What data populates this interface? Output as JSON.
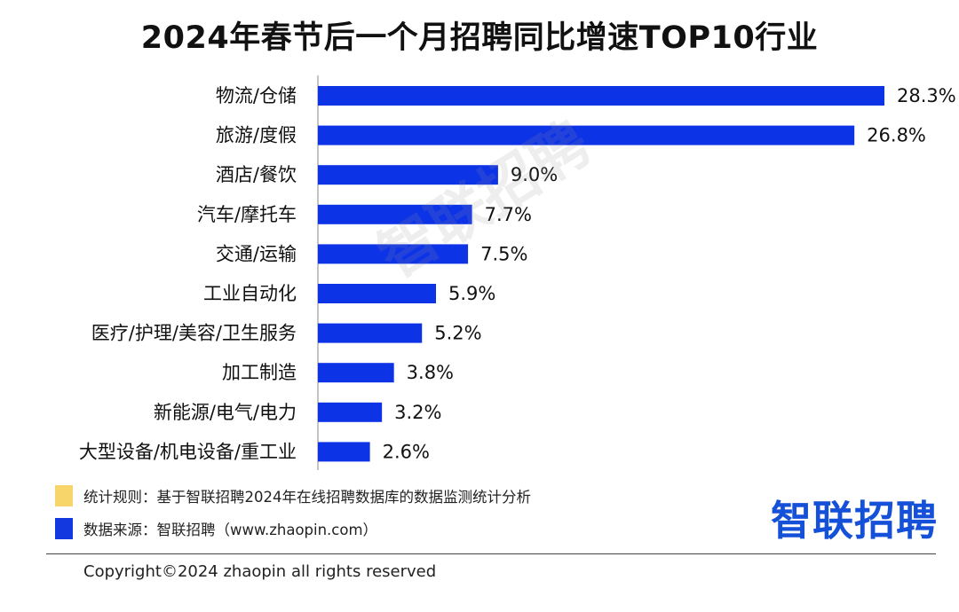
{
  "chart_data": {
    "type": "bar",
    "orientation": "horizontal",
    "title": "2024年春节后一个月招聘同比增速TOP10行业",
    "categories": [
      "物流/仓储",
      "旅游/度假",
      "酒店/餐饮",
      "汽车/摩托车",
      "交通/运输",
      "工业自动化",
      "医疗/护理/美容/卫生服务",
      "加工制造",
      "新能源/电气/电力",
      "大型设备/机电设备/重工业"
    ],
    "values": [
      28.3,
      26.8,
      9.0,
      7.7,
      7.5,
      5.9,
      5.2,
      3.8,
      3.2,
      2.6
    ],
    "data_labels": [
      "28.3%",
      "26.8%",
      "9.0%",
      "7.7%",
      "7.5%",
      "5.9%",
      "5.2%",
      "3.8%",
      "3.2%",
      "2.6%"
    ],
    "xlim": [
      0,
      28.3
    ],
    "bar_color": "#0d33e6",
    "grid": false,
    "legend": "none"
  },
  "watermark": "智联招聘",
  "notes": [
    {
      "text": "统计规则：基于智联招聘2024年在线招聘数据库的数据监测统计分析",
      "color": "#f7d56a"
    },
    {
      "text": "数据来源：智联招聘（www.zhaopin.com）",
      "color": "#1438e0"
    }
  ],
  "brand": "智联招聘",
  "copyright": "Copyright©2024 zhaopin all rights reserved"
}
